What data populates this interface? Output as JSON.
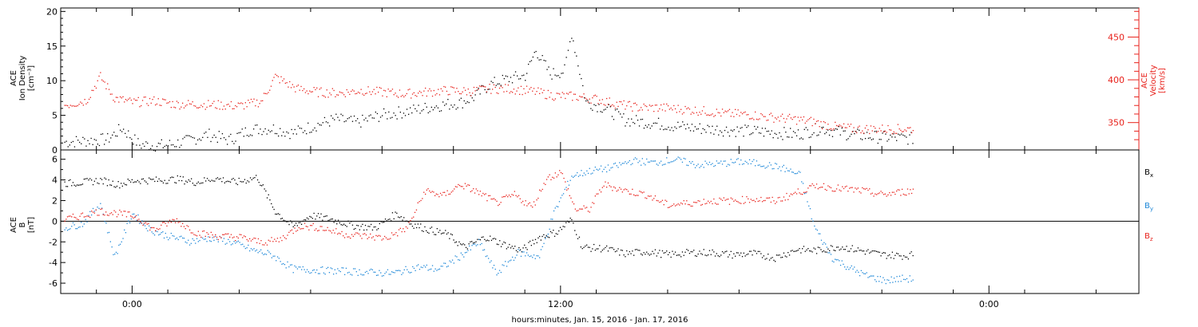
{
  "chart_data": [
    {
      "type": "scatter",
      "panel": "top",
      "ylabel_left": [
        "ACE",
        "Ion Density",
        "[cm⁻³]"
      ],
      "ylabel_right": [
        "ACE",
        "Velocity",
        "[km/s]"
      ],
      "ylim_left": [
        0,
        20.5
      ],
      "ylim_right": [
        318,
        484
      ],
      "y_ticks_left": [
        0,
        5,
        10,
        15,
        20
      ],
      "y_ticks_right": [
        350,
        400,
        450
      ],
      "x_ticks": [
        "0:00",
        "12:00",
        "0:00"
      ],
      "xlabel": "hours:minutes, Jan. 15, 2016 - Jan. 17, 2016",
      "xlim_hours": [
        -2.0,
        28.2
      ],
      "series": [
        {
          "axis": "left",
          "color": "#000000",
          "points": [
            [
              -1.9,
              1.2
            ],
            [
              -1.3,
              1.4
            ],
            [
              -0.7,
              1.6
            ],
            [
              -0.3,
              3.2
            ],
            [
              0.2,
              0.8
            ],
            [
              0.9,
              0.7
            ],
            [
              1.5,
              1.3
            ],
            [
              2.1,
              2.3
            ],
            [
              2.7,
              1.5
            ],
            [
              3.3,
              3.0
            ],
            [
              3.9,
              3.2
            ],
            [
              4.5,
              2.5
            ],
            [
              5.1,
              3.6
            ],
            [
              5.7,
              4.5
            ],
            [
              6.3,
              4.0
            ],
            [
              6.9,
              5.0
            ],
            [
              7.5,
              5.5
            ],
            [
              8.1,
              6.0
            ],
            [
              8.6,
              6.5
            ],
            [
              9.2,
              6.9
            ],
            [
              9.6,
              7.8
            ],
            [
              10.0,
              9.5
            ],
            [
              10.5,
              10.3
            ],
            [
              11.0,
              10.8
            ],
            [
              11.3,
              14.5
            ],
            [
              11.7,
              11.0
            ],
            [
              12.1,
              11.5
            ],
            [
              12.3,
              17.0
            ],
            [
              12.7,
              7.0
            ],
            [
              13.2,
              6.2
            ],
            [
              13.8,
              4.4
            ],
            [
              14.5,
              4.0
            ],
            [
              15.1,
              3.6
            ],
            [
              15.8,
              3.2
            ],
            [
              16.5,
              3.0
            ],
            [
              17.2,
              2.8
            ],
            [
              17.9,
              2.6
            ],
            [
              18.6,
              2.3
            ],
            [
              19.3,
              3.2
            ],
            [
              20.0,
              2.4
            ],
            [
              20.7,
              2.0
            ],
            [
              21.4,
              1.8
            ],
            [
              21.9,
              1.7
            ]
          ]
        },
        {
          "axis": "right",
          "color": "#e8221c",
          "points": [
            [
              -1.9,
              371
            ],
            [
              -1.3,
              376
            ],
            [
              -0.9,
              404
            ],
            [
              -0.5,
              379
            ],
            [
              0.0,
              374
            ],
            [
              0.6,
              376
            ],
            [
              1.2,
              372
            ],
            [
              1.8,
              372
            ],
            [
              2.4,
              371
            ],
            [
              3.0,
              370
            ],
            [
              3.6,
              375
            ],
            [
              4.0,
              404
            ],
            [
              4.6,
              390
            ],
            [
              5.2,
              386
            ],
            [
              5.8,
              385
            ],
            [
              6.4,
              388
            ],
            [
              7.0,
              386
            ],
            [
              7.6,
              384
            ],
            [
              8.2,
              386
            ],
            [
              8.8,
              388
            ],
            [
              9.4,
              387
            ],
            [
              10.0,
              390
            ],
            [
              10.6,
              390
            ],
            [
              11.2,
              387
            ],
            [
              11.8,
              382
            ],
            [
              12.4,
              381
            ],
            [
              13.0,
              378
            ],
            [
              13.6,
              372
            ],
            [
              14.2,
              368
            ],
            [
              14.8,
              368
            ],
            [
              15.4,
              366
            ],
            [
              16.0,
              364
            ],
            [
              16.6,
              361
            ],
            [
              17.2,
              360
            ],
            [
              17.8,
              357
            ],
            [
              18.4,
              355
            ],
            [
              19.0,
              352
            ],
            [
              19.6,
              346
            ],
            [
              20.2,
              343
            ],
            [
              20.8,
              343
            ],
            [
              21.4,
              343
            ],
            [
              21.9,
              343
            ]
          ]
        }
      ]
    },
    {
      "type": "scatter",
      "panel": "bottom",
      "ylabel": [
        "ACE",
        "B",
        "[nT]"
      ],
      "ylim": [
        -7.0,
        6.9
      ],
      "y_ticks": [
        -6,
        -4,
        -2,
        0,
        2,
        4,
        6
      ],
      "x_ticks": [
        "0:00",
        "12:00",
        "0:00"
      ],
      "xlim_hours": [
        -2.0,
        28.2
      ],
      "legend": "right",
      "series": [
        {
          "name": "Bx",
          "legend_main": "B",
          "legend_sub": "x",
          "color": "#000000",
          "points": [
            [
              -1.9,
              3.7
            ],
            [
              -1.4,
              3.8
            ],
            [
              -0.9,
              4.0
            ],
            [
              -0.4,
              3.6
            ],
            [
              0.1,
              4.0
            ],
            [
              0.7,
              4.0
            ],
            [
              1.3,
              4.1
            ],
            [
              1.8,
              3.8
            ],
            [
              2.3,
              4.2
            ],
            [
              2.9,
              3.8
            ],
            [
              3.5,
              4.3
            ],
            [
              4.0,
              1.0
            ],
            [
              4.5,
              -0.5
            ],
            [
              5.0,
              0.6
            ],
            [
              5.6,
              0.2
            ],
            [
              6.2,
              -0.4
            ],
            [
              6.8,
              -0.6
            ],
            [
              7.4,
              0.8
            ],
            [
              7.8,
              -0.2
            ],
            [
              8.3,
              -0.8
            ],
            [
              8.8,
              -1.2
            ],
            [
              9.3,
              -2.5
            ],
            [
              9.9,
              -1.5
            ],
            [
              10.4,
              -2.2
            ],
            [
              10.9,
              -2.8
            ],
            [
              11.4,
              -1.5
            ],
            [
              11.9,
              -1.0
            ],
            [
              12.3,
              0.2
            ],
            [
              12.6,
              -2.5
            ],
            [
              13.2,
              -2.6
            ],
            [
              13.8,
              -3.1
            ],
            [
              14.4,
              -2.9
            ],
            [
              15.0,
              -3.2
            ],
            [
              15.6,
              -3.0
            ],
            [
              16.2,
              -3.0
            ],
            [
              16.8,
              -3.2
            ],
            [
              17.4,
              -3.1
            ],
            [
              18.0,
              -3.5
            ],
            [
              18.6,
              -2.7
            ],
            [
              19.2,
              -2.8
            ],
            [
              19.8,
              -2.4
            ],
            [
              20.4,
              -2.8
            ],
            [
              21.0,
              -3.2
            ],
            [
              21.6,
              -3.3
            ],
            [
              21.9,
              -3.2
            ]
          ]
        },
        {
          "name": "By",
          "legend_main": "B",
          "legend_sub": "y",
          "color": "#1e88d8",
          "points": [
            [
              -1.9,
              -0.6
            ],
            [
              -1.4,
              -0.2
            ],
            [
              -0.9,
              1.8
            ],
            [
              -0.5,
              -3.4
            ],
            [
              0.0,
              0.8
            ],
            [
              0.5,
              -0.8
            ],
            [
              1.0,
              -1.4
            ],
            [
              1.6,
              -1.9
            ],
            [
              2.2,
              -1.6
            ],
            [
              2.8,
              -2.0
            ],
            [
              3.4,
              -2.8
            ],
            [
              3.9,
              -3.2
            ],
            [
              4.5,
              -4.6
            ],
            [
              5.2,
              -4.7
            ],
            [
              5.9,
              -4.8
            ],
            [
              6.6,
              -4.9
            ],
            [
              7.3,
              -5.0
            ],
            [
              8.0,
              -4.4
            ],
            [
              8.6,
              -4.6
            ],
            [
              9.2,
              -3.3
            ],
            [
              9.7,
              -2.0
            ],
            [
              10.2,
              -5.0
            ],
            [
              10.8,
              -3.0
            ],
            [
              11.4,
              -3.4
            ],
            [
              11.8,
              0.8
            ],
            [
              12.3,
              4.4
            ],
            [
              12.8,
              4.9
            ],
            [
              13.4,
              5.2
            ],
            [
              14.0,
              5.9
            ],
            [
              14.6,
              5.7
            ],
            [
              15.2,
              6.0
            ],
            [
              15.8,
              5.5
            ],
            [
              16.4,
              5.6
            ],
            [
              17.0,
              5.8
            ],
            [
              17.6,
              5.6
            ],
            [
              18.2,
              5.2
            ],
            [
              18.7,
              4.5
            ],
            [
              19.1,
              -0.5
            ],
            [
              19.6,
              -3.5
            ],
            [
              20.1,
              -4.5
            ],
            [
              20.6,
              -5.3
            ],
            [
              21.1,
              -5.7
            ],
            [
              21.6,
              -5.5
            ],
            [
              21.9,
              -5.6
            ]
          ]
        },
        {
          "name": "Bz",
          "legend_main": "B",
          "legend_sub": "z",
          "color": "#e8221c",
          "points": [
            [
              -1.9,
              0.2
            ],
            [
              -1.4,
              0.6
            ],
            [
              -0.9,
              1.0
            ],
            [
              -0.4,
              0.8
            ],
            [
              0.1,
              0.5
            ],
            [
              0.6,
              -0.8
            ],
            [
              1.2,
              0.2
            ],
            [
              1.8,
              -1.1
            ],
            [
              2.4,
              -1.4
            ],
            [
              3.0,
              -1.5
            ],
            [
              3.6,
              -2.0
            ],
            [
              4.1,
              -1.8
            ],
            [
              4.7,
              -0.4
            ],
            [
              5.3,
              -0.6
            ],
            [
              5.9,
              -1.2
            ],
            [
              6.5,
              -1.4
            ],
            [
              7.1,
              -1.6
            ],
            [
              7.7,
              -0.6
            ],
            [
              8.2,
              3.0
            ],
            [
              8.7,
              2.5
            ],
            [
              9.2,
              3.6
            ],
            [
              9.7,
              2.8
            ],
            [
              10.2,
              1.8
            ],
            [
              10.7,
              2.6
            ],
            [
              11.2,
              1.4
            ],
            [
              11.6,
              4.2
            ],
            [
              12.0,
              4.8
            ],
            [
              12.4,
              1.2
            ],
            [
              12.8,
              1.2
            ],
            [
              13.2,
              3.6
            ],
            [
              13.8,
              3.0
            ],
            [
              14.4,
              2.6
            ],
            [
              15.0,
              1.6
            ],
            [
              15.6,
              1.8
            ],
            [
              16.2,
              2.0
            ],
            [
              16.8,
              2.0
            ],
            [
              17.4,
              2.2
            ],
            [
              18.0,
              2.0
            ],
            [
              18.6,
              2.8
            ],
            [
              19.2,
              3.5
            ],
            [
              19.8,
              3.2
            ],
            [
              20.4,
              3.0
            ],
            [
              21.0,
              2.6
            ],
            [
              21.4,
              2.8
            ],
            [
              21.9,
              3.0
            ]
          ]
        }
      ]
    }
  ]
}
